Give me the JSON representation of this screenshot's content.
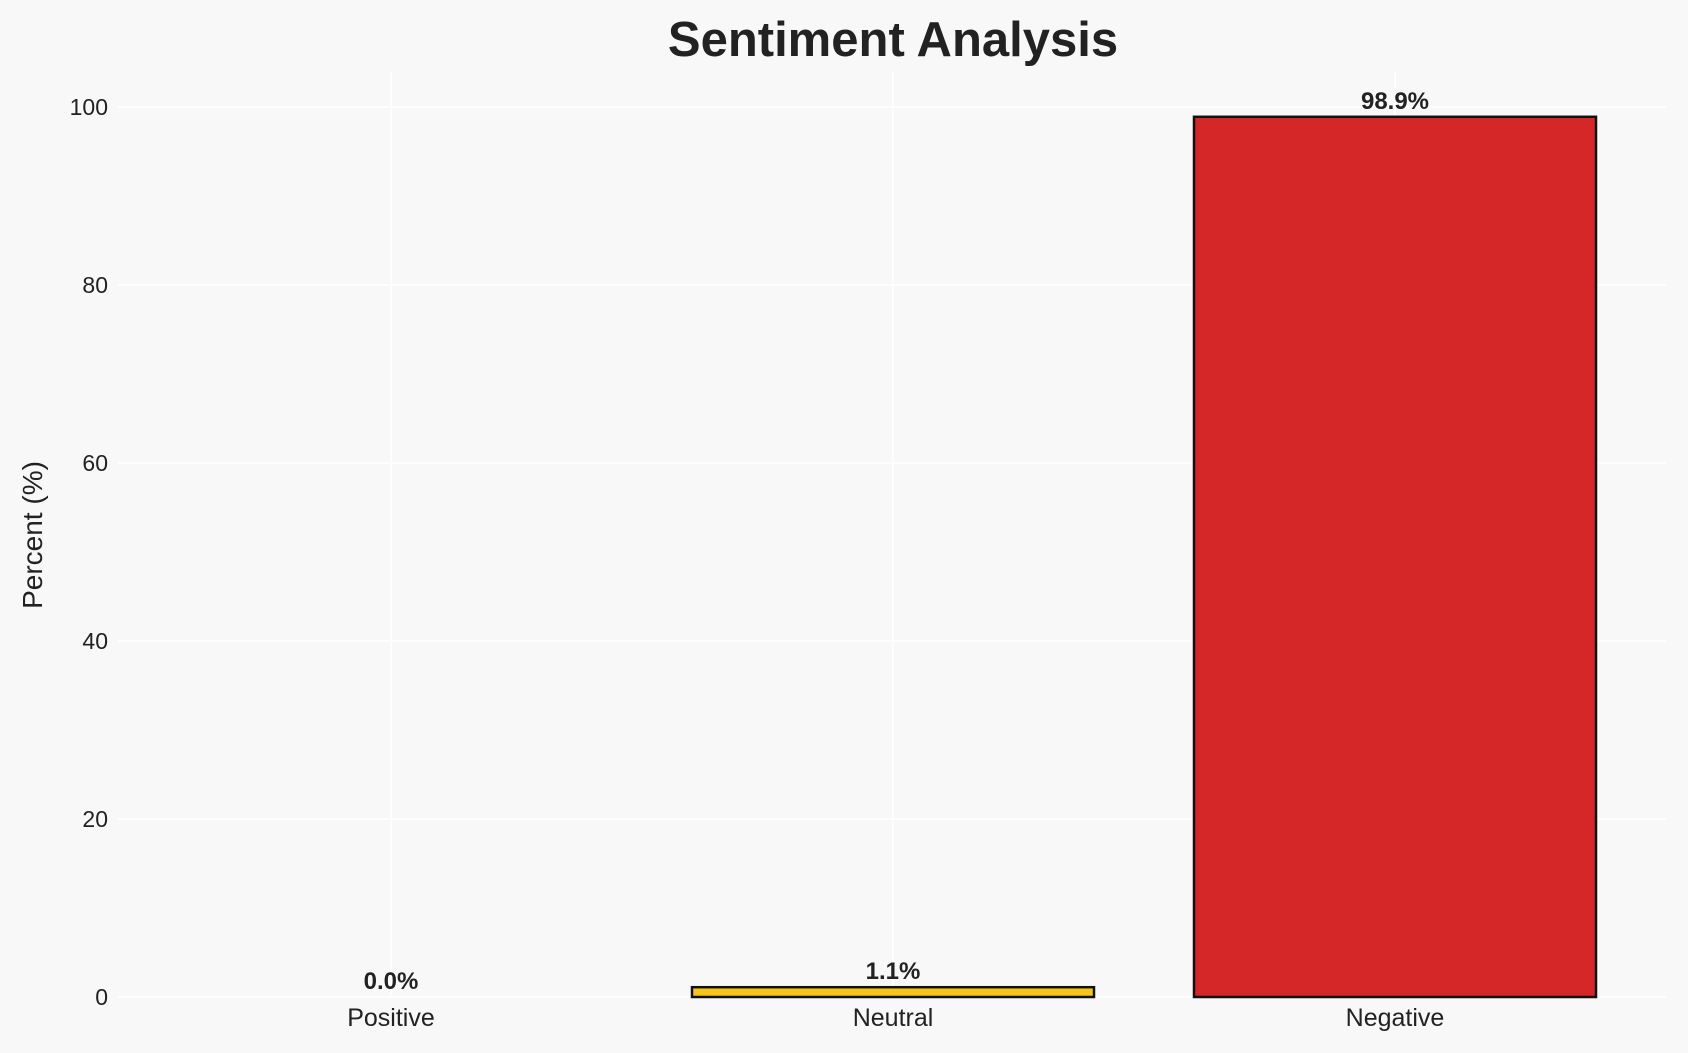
{
  "chart_data": {
    "type": "bar",
    "title": "Sentiment Analysis",
    "xlabel": "",
    "ylabel": "Percent (%)",
    "categories": [
      "Positive",
      "Neutral",
      "Negative"
    ],
    "values": [
      0.0,
      1.1,
      98.9
    ],
    "data_labels": [
      "0.0%",
      "1.1%",
      "98.9%"
    ],
    "colors": [
      "#2ca02c",
      "#f5c518",
      "#d62728"
    ],
    "edge_color": "#111111",
    "ylim": [
      0,
      104
    ],
    "yticks": [
      0,
      20,
      40,
      60,
      80,
      100
    ],
    "grid": true,
    "background": "#f8f8f8"
  }
}
